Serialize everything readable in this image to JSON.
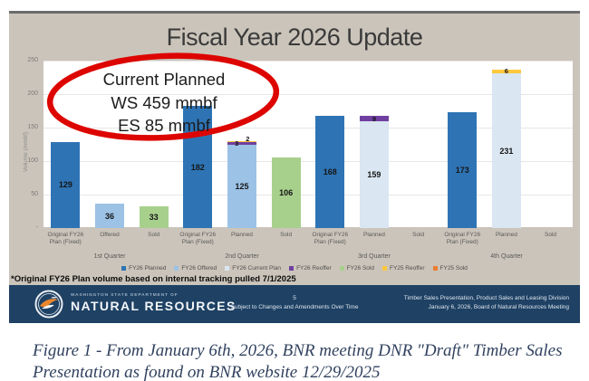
{
  "slide": {
    "title": "Fiscal Year 2026 Update",
    "annotation": {
      "lines": [
        "Current Planned",
        "WS 459 mmbf",
        "ES 85 mmbf"
      ]
    },
    "footnote": "*Original FY26 Plan volume based on internal tracking pulled 7/1/2025",
    "footer": {
      "brand_top": "WASHINGTON STATE DEPARTMENT OF",
      "brand_name": "NATURAL RESOURCES",
      "page_number": "5",
      "center_note": "Subject to Changes and Amendments Over Time",
      "right_line1": "Timber Sales Presentation, Product Sales and Leasing Division",
      "right_line2": "January 6, 2026, Board of Natural Resources Meeting"
    }
  },
  "caption": "Figure 1 - From January 6th, 2026, BNR meeting DNR \"Draft\" Timber Sales Presentation as found on BNR website 12/29/2025",
  "chart_data": {
    "type": "bar",
    "title": "Fiscal Year 2026 Update",
    "ylabel": "Volume (mmbf)",
    "ylim": [
      0,
      250
    ],
    "ytick_labels": [
      "250",
      "200",
      "150",
      "100",
      "50",
      "-"
    ],
    "grid": true,
    "legend_position": "bottom",
    "annotation_text": "Current Planned WS 459 mmbf ES 85 mmbf",
    "textured_series": "FY26 Current Plan",
    "series_colors": {
      "FY26 Planned": "#2E74B5",
      "FY26 Offered": "#9CC2E5",
      "FY26 Current Plan": "#DAE6F2",
      "FY26 Reoffer": "#7040A0",
      "FY26 Sold": "#A8D08D",
      "FY25 Reoffer": "#FFC83D",
      "FY25 Sold": "#ED7D31"
    },
    "legend_items": [
      {
        "label": "FY26 Planned",
        "color": "#2E74B5"
      },
      {
        "label": "FY26 Offered",
        "color": "#9CC2E5"
      },
      {
        "label": "FY26 Current Plan",
        "color": "#DAE6F2"
      },
      {
        "label": "FY26 Reoffer",
        "color": "#7040A0"
      },
      {
        "label": "FY26 Sold",
        "color": "#A8D08D"
      },
      {
        "label": "FY25 Reoffer",
        "color": "#FFC83D"
      },
      {
        "label": "FY25 Sold",
        "color": "#ED7D31"
      }
    ],
    "groups": [
      {
        "quarter": "1st Quarter",
        "bars": [
          {
            "label": "Original FY26 Plan (Fixed)",
            "segments": [
              {
                "series": "FY26 Planned",
                "value": 129
              }
            ]
          },
          {
            "label": "Offered",
            "segments": [
              {
                "series": "FY26 Offered",
                "value": 36
              }
            ]
          },
          {
            "label": "Sold",
            "segments": [
              {
                "series": "FY26 Sold",
                "value": 33
              }
            ]
          }
        ]
      },
      {
        "quarter": "2nd Quarter",
        "bars": [
          {
            "label": "Original FY26 Plan (Fixed)",
            "segments": [
              {
                "series": "FY26 Planned",
                "value": 182
              }
            ]
          },
          {
            "label": "Planned",
            "segments": [
              {
                "series": "FY26 Offered",
                "value": 125
              },
              {
                "series": "FY26 Reoffer",
                "value": 3
              },
              {
                "series": "FY25 Reoffer",
                "value": 2
              }
            ]
          },
          {
            "label": "Sold",
            "segments": [
              {
                "series": "FY26 Sold",
                "value": 106
              }
            ]
          }
        ]
      },
      {
        "quarter": "3rd Quarter",
        "bars": [
          {
            "label": "Original FY26 Plan (Fixed)",
            "segments": [
              {
                "series": "FY26 Planned",
                "value": 168
              }
            ]
          },
          {
            "label": "Planned",
            "segments": [
              {
                "series": "FY26 Current Plan",
                "value": 159
              },
              {
                "series": "FY26 Reoffer",
                "value": 9
              }
            ]
          },
          {
            "label": "Sold",
            "segments": []
          }
        ]
      },
      {
        "quarter": "4th Quarter",
        "bars": [
          {
            "label": "Original FY26 Plan (Fixed)",
            "segments": [
              {
                "series": "FY26 Planned",
                "value": 173
              }
            ]
          },
          {
            "label": "Planned",
            "segments": [
              {
                "series": "FY26 Current Plan",
                "value": 231
              },
              {
                "series": "FY25 Reoffer",
                "value": 6
              }
            ]
          },
          {
            "label": "Sold",
            "segments": []
          }
        ]
      }
    ]
  }
}
